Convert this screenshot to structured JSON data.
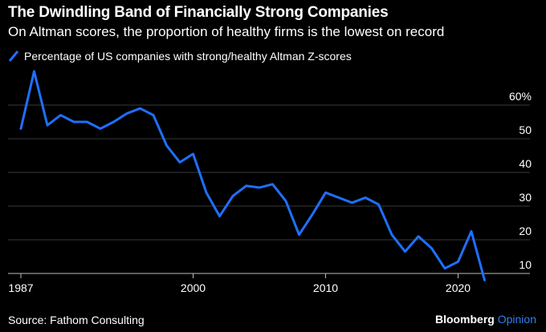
{
  "chart_data": {
    "type": "line",
    "title": "The Dwindling Band of Financially Strong Companies",
    "subtitle": "On Altman scores, the proportion of healthy firms is the lowest on record",
    "series": [
      {
        "name": "Percentage of US companies with strong/healthy Altman Z-scores",
        "color": "#1f6fff",
        "x": [
          1987,
          1988,
          1989,
          1990,
          1991,
          1992,
          1993,
          1994,
          1995,
          1996,
          1997,
          1998,
          1999,
          2000,
          2001,
          2002,
          2003,
          2004,
          2005,
          2006,
          2007,
          2008,
          2009,
          2010,
          2011,
          2012,
          2013,
          2014,
          2015,
          2016,
          2017,
          2018,
          2019,
          2020,
          2021,
          2022
        ],
        "values": [
          53,
          70,
          54,
          57,
          55,
          55,
          53,
          55,
          57.5,
          59,
          57,
          48,
          43,
          45.5,
          34,
          27,
          33,
          36,
          35.5,
          36.5,
          31.5,
          21.5,
          27.5,
          34,
          32.5,
          31,
          32.5,
          30.5,
          21.5,
          16.5,
          21,
          17.5,
          11.5,
          13.5,
          22.5,
          8
        ]
      }
    ],
    "x_ticks": [
      "1987",
      "2000",
      "2010",
      "2020"
    ],
    "y_ticks": [
      "10",
      "20",
      "30",
      "40",
      "50",
      "60%"
    ],
    "xlim": [
      1987,
      2023
    ],
    "ylim": [
      10,
      72
    ],
    "grid": true,
    "legend": "top-left"
  },
  "footer": {
    "source": "Source: Fathom Consulting",
    "brand": "Bloomberg",
    "brand_suffix": "Opinion"
  },
  "colors": {
    "background": "#000000",
    "line": "#1f6fff",
    "grid": "#3a3a3a",
    "text": "#ffffff",
    "brand_accent": "#2f7ff5"
  }
}
